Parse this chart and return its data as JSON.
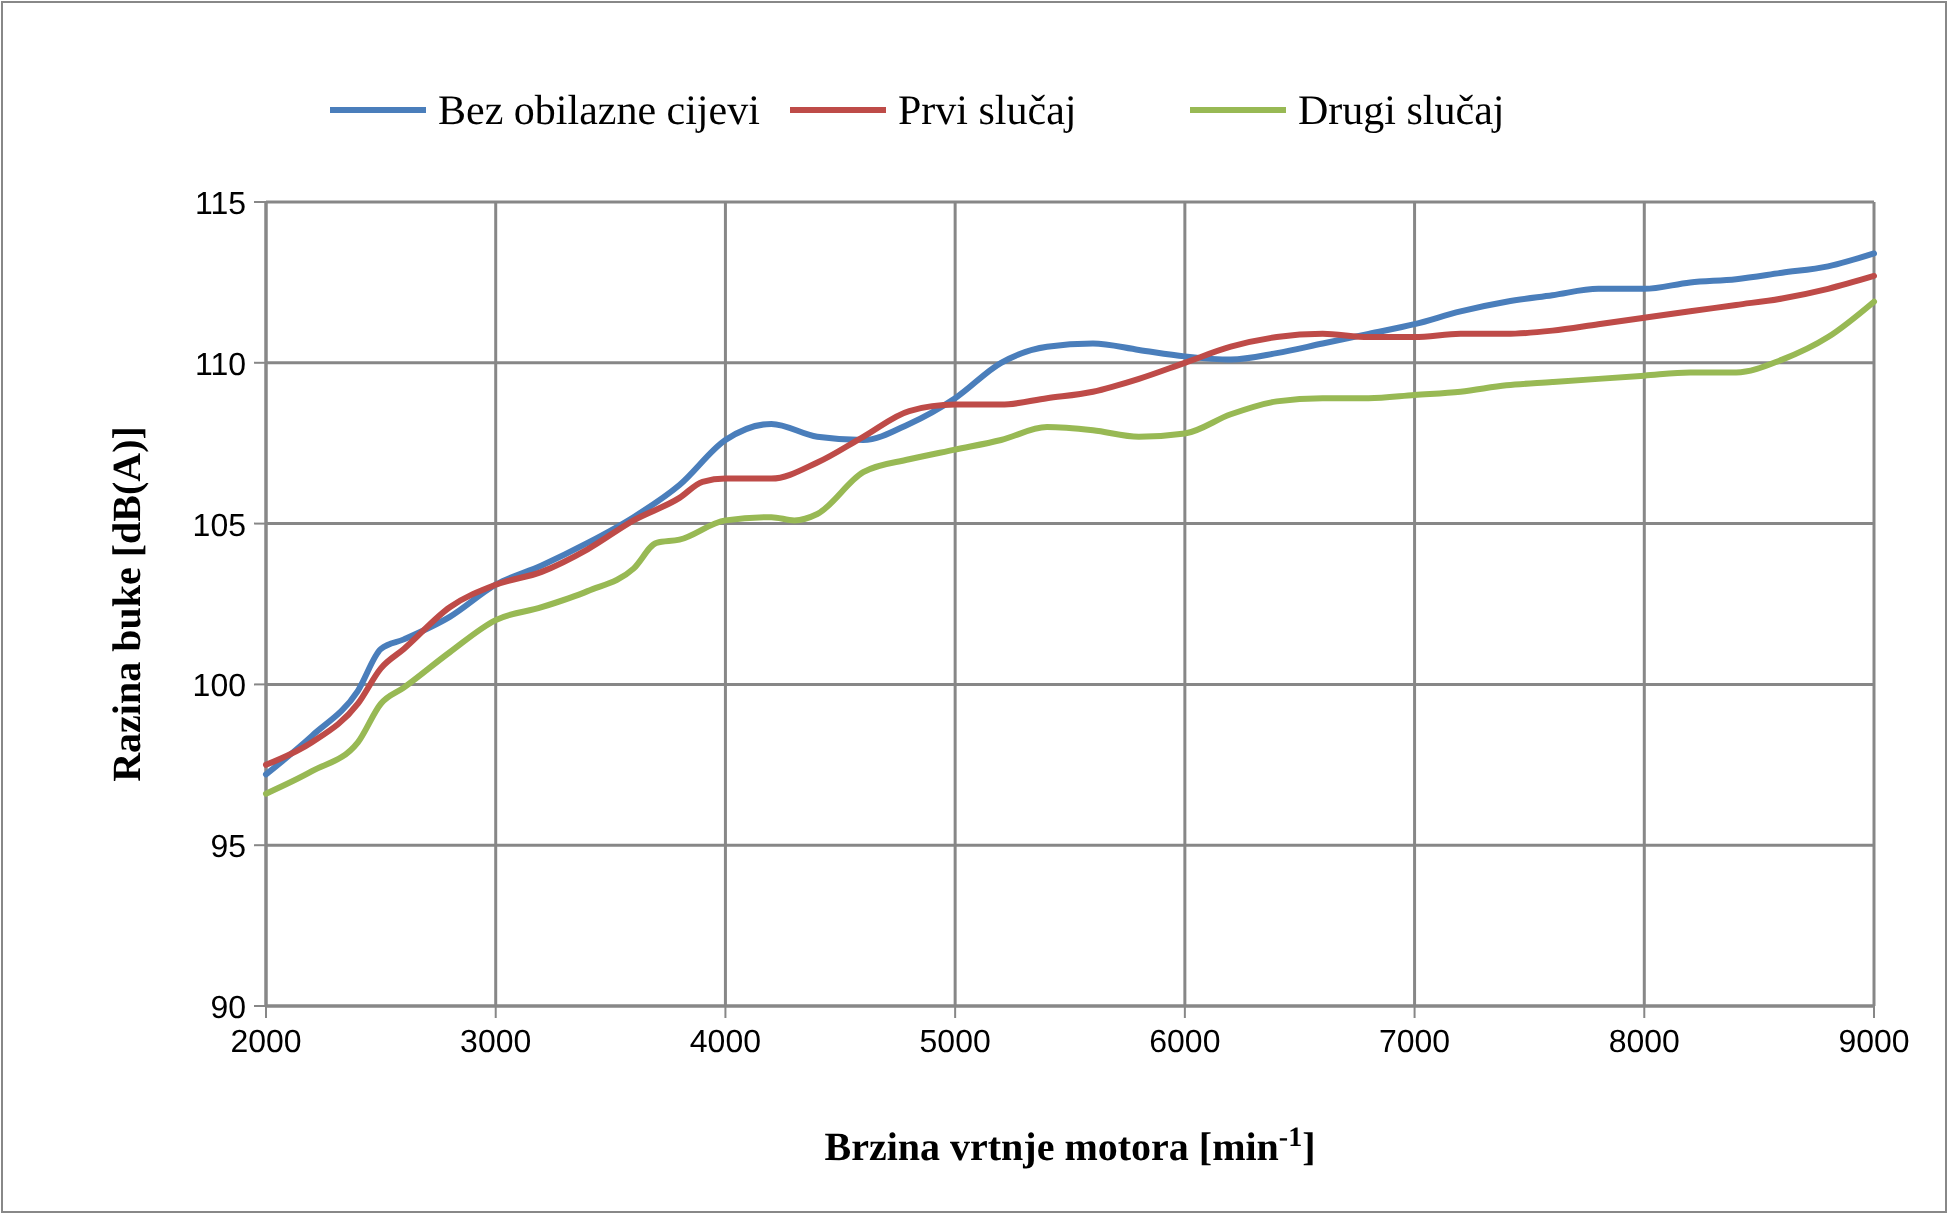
{
  "chart_data": {
    "type": "line",
    "xlabel": "Brzina vrtnje motora [min$^{-1}$]",
    "ylabel": "Razina buke  [dB(A)]",
    "xlim": [
      2000,
      9000
    ],
    "xticks": [
      2000,
      3000,
      4000,
      5000,
      6000,
      7000,
      8000,
      9000
    ],
    "ylim": [
      90,
      115
    ],
    "yticks": [
      90,
      95,
      100,
      105,
      110,
      115
    ],
    "grid": true,
    "legend": "top",
    "marker": "none",
    "line_style": "solid",
    "series": [
      {
        "name": "Bez obilazne cijevi",
        "color": "#4a7ebb",
        "x": [
          2000,
          2200,
          2400,
          2500,
          2600,
          2800,
          3000,
          3200,
          3400,
          3600,
          3800,
          4000,
          4200,
          4400,
          4600,
          4800,
          5000,
          5200,
          5400,
          5600,
          5800,
          6000,
          6200,
          6400,
          6600,
          6800,
          7000,
          7200,
          7400,
          7600,
          7800,
          8000,
          8200,
          8400,
          8600,
          8800,
          9000
        ],
        "values": [
          97.2,
          98.4,
          99.8,
          101.1,
          101.4,
          102.1,
          103.1,
          103.7,
          104.4,
          105.2,
          106.2,
          107.6,
          108.1,
          107.7,
          107.6,
          108.1,
          108.9,
          110.0,
          110.5,
          110.6,
          110.4,
          110.2,
          110.1,
          110.3,
          110.6,
          110.9,
          111.2,
          111.6,
          111.9,
          112.1,
          112.3,
          112.3,
          112.5,
          112.6,
          112.8,
          113.0,
          113.4
        ]
      },
      {
        "name": "Prvi slučaj",
        "color": "#be4b48",
        "x": [
          2000,
          2200,
          2400,
          2500,
          2600,
          2800,
          3000,
          3200,
          3400,
          3600,
          3800,
          3900,
          4000,
          4200,
          4400,
          4600,
          4800,
          5000,
          5200,
          5400,
          5600,
          5800,
          6000,
          6200,
          6400,
          6600,
          6800,
          7000,
          7200,
          7400,
          7600,
          7800,
          8000,
          8200,
          8400,
          8600,
          8800,
          9000
        ],
        "values": [
          97.5,
          98.2,
          99.4,
          100.5,
          101.1,
          102.4,
          103.1,
          103.5,
          104.2,
          105.1,
          105.8,
          106.3,
          106.4,
          106.4,
          106.9,
          107.7,
          108.5,
          108.7,
          108.7,
          108.9,
          109.1,
          109.5,
          110.0,
          110.5,
          110.8,
          110.9,
          110.8,
          110.8,
          110.9,
          110.9,
          111.0,
          111.2,
          111.4,
          111.6,
          111.8,
          112.0,
          112.3,
          112.7
        ]
      },
      {
        "name": "Drugi slučaj",
        "color": "#98b954",
        "x": [
          2000,
          2200,
          2400,
          2500,
          2600,
          2800,
          3000,
          3200,
          3400,
          3600,
          3700,
          3800,
          4000,
          4200,
          4300,
          4400,
          4600,
          4800,
          5000,
          5200,
          5400,
          5600,
          5800,
          6000,
          6200,
          6400,
          6600,
          6800,
          7000,
          7200,
          7400,
          7600,
          7800,
          8000,
          8200,
          8400,
          8600,
          8800,
          9000
        ],
        "values": [
          96.6,
          97.3,
          98.2,
          99.4,
          99.9,
          101.0,
          102.0,
          102.4,
          102.9,
          103.6,
          104.4,
          104.5,
          105.1,
          105.2,
          105.1,
          105.3,
          106.6,
          107.0,
          107.3,
          107.6,
          108.0,
          107.9,
          107.7,
          107.8,
          108.4,
          108.8,
          108.9,
          108.9,
          109.0,
          109.1,
          109.3,
          109.4,
          109.5,
          109.6,
          109.7,
          109.7,
          110.1,
          110.8,
          111.9
        ]
      }
    ]
  }
}
